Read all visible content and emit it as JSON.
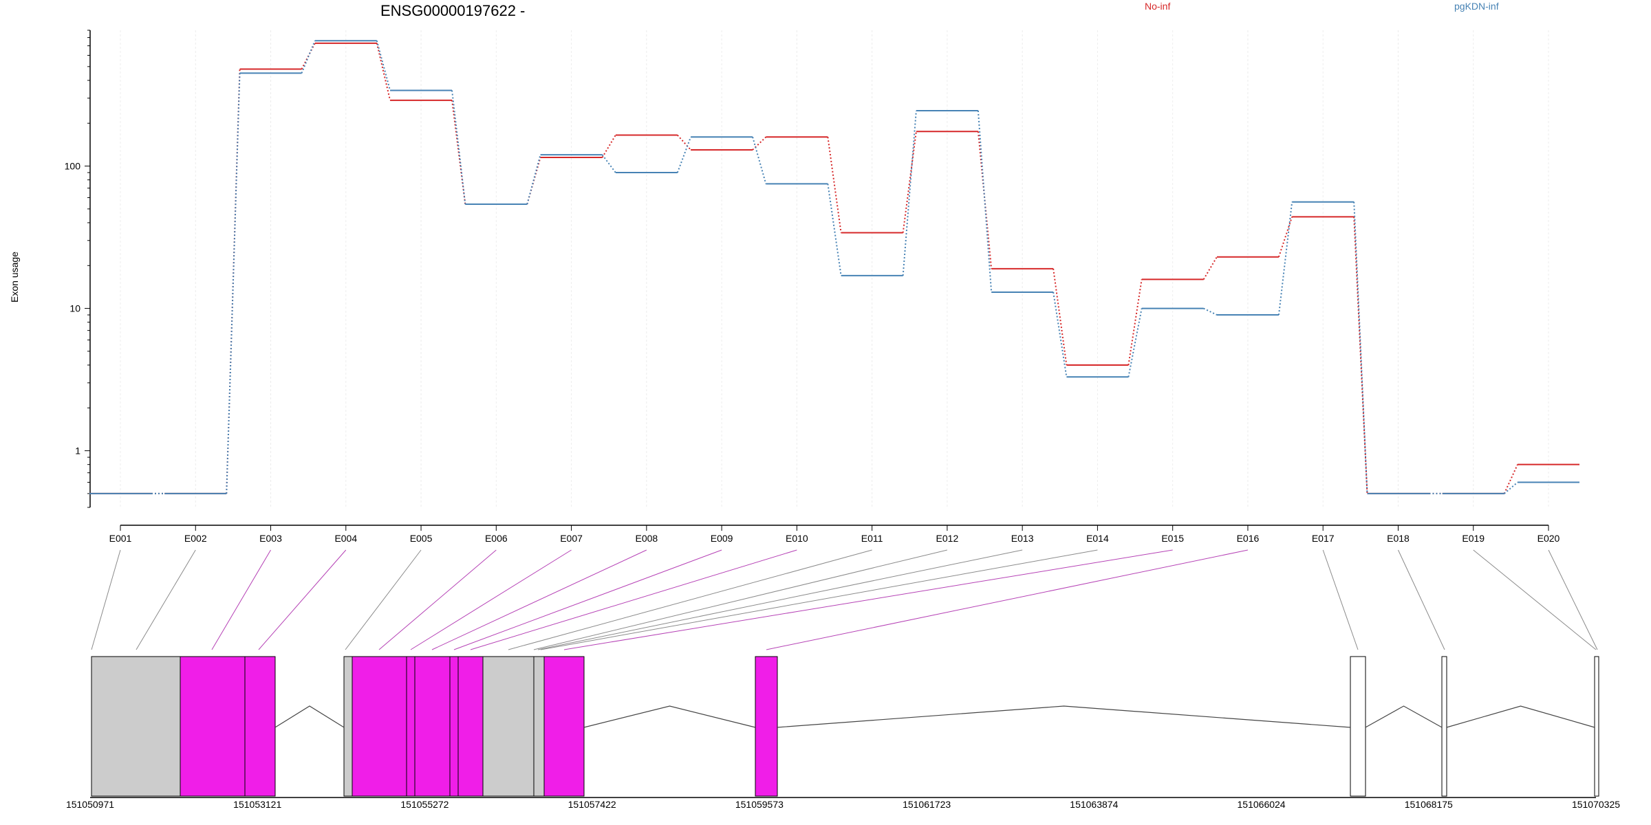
{
  "chart_data": {
    "type": "line",
    "title": "ENSG00000197622 -",
    "ylabel": "Exon usage",
    "yscale": "log",
    "ylim": [
      0.4,
      900
    ],
    "yticks": [
      "1",
      "10",
      "100"
    ],
    "grid": false,
    "legend": {
      "placement": "top"
    },
    "categories": [
      "E001",
      "E002",
      "E003",
      "E004",
      "E005",
      "E006",
      "E007",
      "E008",
      "E009",
      "E010",
      "E011",
      "E012",
      "E013",
      "E014",
      "E015",
      "E016",
      "E017",
      "E018",
      "E019",
      "E020"
    ],
    "series": [
      {
        "name": "No-inf",
        "color": "#d62728",
        "values": [
          0.5,
          0.5,
          480,
          730,
          290,
          54,
          115,
          165,
          130,
          160,
          34,
          175,
          19,
          4,
          16,
          23,
          44,
          0.5,
          0.5,
          0.8
        ]
      },
      {
        "name": "pgKDN-inf",
        "color": "#4682b4",
        "values": [
          0.5,
          0.5,
          450,
          760,
          340,
          54,
          120,
          90,
          160,
          75,
          17,
          245,
          13,
          3.3,
          10,
          9,
          56,
          0.5,
          0.5,
          0.6
        ]
      }
    ],
    "gene_track": {
      "coordinate_ticks": [
        "151050971",
        "151053121",
        "151055272",
        "151057422",
        "151059573",
        "151061723",
        "151063874",
        "151066024",
        "151068175",
        "151070325"
      ],
      "exon_fill_colors": {
        "gray": "#cccccc",
        "magenta": "#f01ee8",
        "white": "#ffffff"
      }
    }
  }
}
